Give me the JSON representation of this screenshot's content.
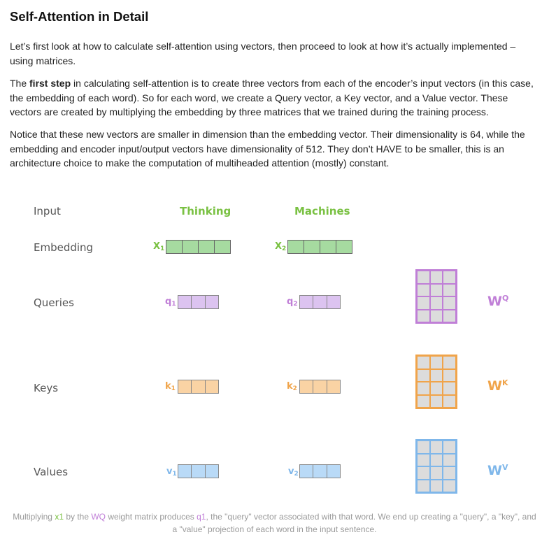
{
  "title": "Self-Attention in Detail",
  "para1": "Let’s first look at how to calculate self-attention using vectors, then proceed to look at how it’s actually implemented – using matrices.",
  "para2": {
    "bold": "first step",
    "pre": "The ",
    "post": " in calculating self-attention is to create three vectors from each of the encoder’s input vectors (in this case, the embedding of each word). So for each word, we create a Query vector, a Key vector, and a Value vector. These vectors are created by multiplying the embedding by three matrices that we trained during the training process."
  },
  "para3": "Notice that these new vectors are smaller in dimension than the embedding vector. Their dimensionality is 64, while the embedding and encoder input/output vectors have dimensionality of 512. They don’t HAVE to be smaller, this is an architecture choice to make the computation of multiheaded attention (mostly) constant.",
  "diagram": {
    "rows": {
      "input": "Input",
      "embedding": "Embedding",
      "queries": "Queries",
      "keys": "Keys",
      "values": "Values"
    },
    "words": [
      "Thinking",
      "Machines"
    ],
    "vector_labels": {
      "x": [
        "X",
        "X"
      ],
      "x_sub": [
        "1",
        "2"
      ],
      "q": [
        "q",
        "q"
      ],
      "q_sub": [
        "1",
        "2"
      ],
      "k": [
        "k",
        "k"
      ],
      "k_sub": [
        "1",
        "2"
      ],
      "v": [
        "v",
        "v"
      ],
      "v_sub": [
        "1",
        "2"
      ]
    },
    "weights": {
      "q": {
        "base": "W",
        "sup": "Q"
      },
      "k": {
        "base": "W",
        "sup": "K"
      },
      "v": {
        "base": "W",
        "sup": "V"
      }
    },
    "colors": {
      "green": "#7ac143",
      "green_fill": "#a6dba0",
      "purple": "#c07fd7",
      "purple_fill": "#dcc3f0",
      "orange": "#f0a44a",
      "orange_fill": "#fad3a4",
      "blue": "#7fb7ea",
      "blue_fill": "#b9daf7",
      "matrix_cell": "#dcdcdc"
    }
  },
  "caption": {
    "t1": "Multiplying ",
    "x1": "x1",
    "t2": " by the ",
    "wq": "WQ",
    "t3": " weight matrix produces ",
    "q1": "q1",
    "t4": ", the \"query\" vector associated with that word. We end up creating a \"query\", a \"key\", and a \"value\" projection of each word in the input sentence."
  }
}
